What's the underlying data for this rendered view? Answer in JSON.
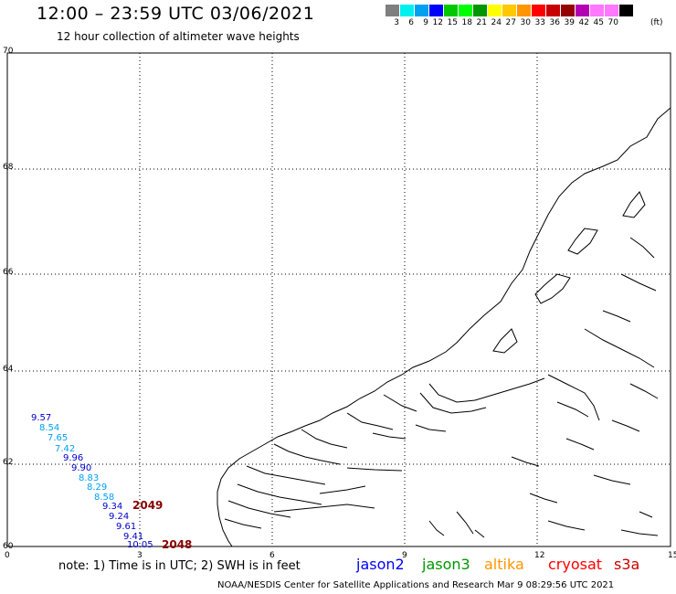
{
  "header": {
    "title": "12:00 – 23:59 UTC 03/06/2021",
    "subtitle": "12 hour collection of altimeter wave heights"
  },
  "colorbar": {
    "colors": [
      "#7f7f7f",
      "#00f0f0",
      "#00a0f0",
      "#0000ff",
      "#00c800",
      "#00ff00",
      "#009600",
      "#ffff00",
      "#ffc800",
      "#ff9600",
      "#ff0000",
      "#c80000",
      "#960000",
      "#b400b4",
      "#ff78ff",
      "#ff78ff",
      "#000000"
    ],
    "labels": [
      "3",
      "6",
      "9",
      "12",
      "15",
      "18",
      "21",
      "24",
      "27",
      "30",
      "33",
      "36",
      "39",
      "42",
      "45",
      "70"
    ],
    "unit": "(ft)"
  },
  "map": {
    "x_ticks": [
      "0",
      "3",
      "6",
      "9",
      "12",
      "15"
    ],
    "y_ticks": [
      "60",
      "62",
      "64",
      "66",
      "68",
      "70"
    ]
  },
  "wave_readings": [
    {
      "value": "9.57",
      "color": "#0000c8"
    },
    {
      "value": "8.54",
      "color": "#00a0f0"
    },
    {
      "value": "7.65",
      "color": "#00a0f0"
    },
    {
      "value": "7.42",
      "color": "#00a0f0"
    },
    {
      "value": "9.96",
      "color": "#0000c8"
    },
    {
      "value": "9.90",
      "color": "#0000c8"
    },
    {
      "value": "8.83",
      "color": "#00a0f0"
    },
    {
      "value": "8.29",
      "color": "#00a0f0"
    },
    {
      "value": "8.58",
      "color": "#00a0f0"
    },
    {
      "value": "9.34",
      "color": "#0000c8"
    },
    {
      "value": "9.24",
      "color": "#0000c8"
    },
    {
      "value": "9.61",
      "color": "#0000c8"
    },
    {
      "value": "9.41",
      "color": "#0000c8"
    },
    {
      "value": "10.05",
      "color": "#0000c8"
    }
  ],
  "pass_labels": [
    {
      "value": "2049",
      "color": "#8b0000"
    },
    {
      "value": "2048",
      "color": "#8b0000"
    }
  ],
  "footer": {
    "note": "note:  1) Time is in UTC;  2) SWH is in feet",
    "satellites": [
      {
        "name": "jason2",
        "color": "#0000ff"
      },
      {
        "name": "jason3",
        "color": "#009600"
      },
      {
        "name": "altika",
        "color": "#ff9600"
      },
      {
        "name": "cryosat",
        "color": "#ff0000"
      },
      {
        "name": "s3a",
        "color": "#c80000"
      }
    ],
    "credit": "NOAA/NESDIS Center for Satellite Applications and Research    Mar  9 08:29:56 UTC 2021"
  }
}
